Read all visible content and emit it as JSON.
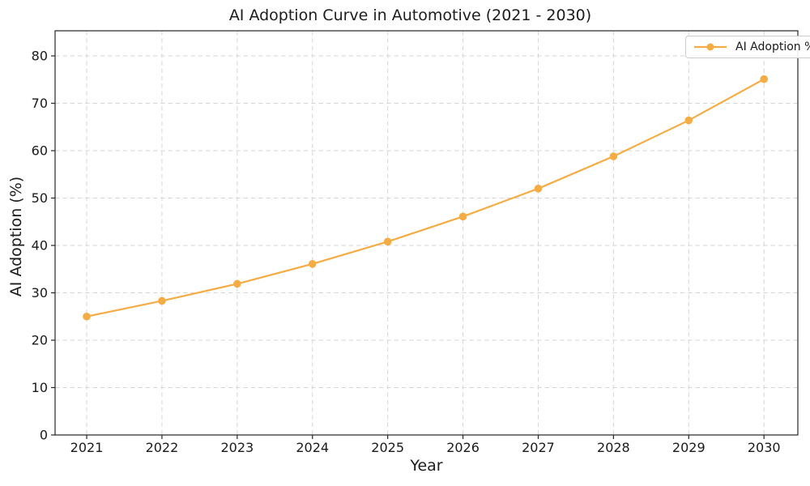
{
  "chart_data": {
    "type": "line",
    "title": "AI Adoption Curve in Automotive (2021 - 2030)",
    "xlabel": "Year",
    "ylabel": "AI Adoption (%)",
    "legend_label": "AI Adoption %",
    "legend_position": "upper right",
    "x": [
      2021,
      2022,
      2023,
      2024,
      2025,
      2026,
      2027,
      2028,
      2029,
      2030
    ],
    "series": [
      {
        "name": "AI Adoption %",
        "values": [
          25.0,
          28.3,
          31.9,
          36.1,
          40.8,
          46.1,
          52.0,
          58.8,
          66.4,
          75.1
        ],
        "marker": "circle"
      }
    ],
    "xtick_labels": [
      "2021",
      "2022",
      "2023",
      "2024",
      "2025",
      "2026",
      "2027",
      "2028",
      "2029",
      "2030"
    ],
    "ytick_values": [
      0,
      10,
      20,
      30,
      40,
      50,
      60,
      70,
      80
    ],
    "xlim": [
      2020.58,
      2030.45
    ],
    "ylim": [
      0,
      85.3
    ],
    "grid": {
      "visible": true,
      "style": "dashed"
    },
    "colors": {
      "line": "#F5AC45",
      "marker": "#F5AC45",
      "grid": "#d6d6d6",
      "spine": "#262626",
      "text": "#1a1a1a",
      "background": "#ffffff",
      "legend_border": "#cccccc"
    }
  }
}
